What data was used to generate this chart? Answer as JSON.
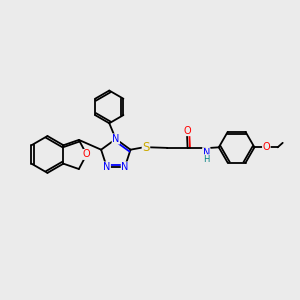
{
  "background_color": "#ebebeb",
  "atom_colors": {
    "N": "#0000ff",
    "O": "#ff0000",
    "S": "#ccaa00",
    "H": "#008080",
    "C": "#000000"
  },
  "figsize": [
    3.0,
    3.0
  ],
  "dpi": 100,
  "lw": 1.3,
  "fs": 7.0
}
